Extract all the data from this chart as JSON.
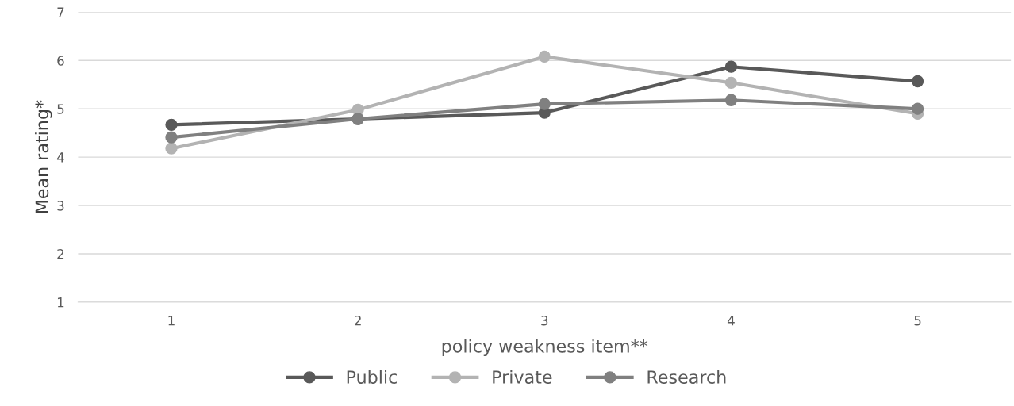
{
  "chart_data": {
    "type": "line",
    "xlabel": "policy weakness item**",
    "ylabel": "Mean rating*",
    "categories": [
      "1",
      "2",
      "3",
      "4",
      "5"
    ],
    "series": [
      {
        "name": "Public",
        "color": "#595959",
        "values": [
          4.67,
          4.79,
          4.92,
          5.87,
          5.57
        ]
      },
      {
        "name": "Private",
        "color": "#b3b3b3",
        "values": [
          4.18,
          4.98,
          6.08,
          5.54,
          4.9
        ]
      },
      {
        "name": "Research",
        "color": "#808080",
        "values": [
          4.41,
          4.79,
          5.1,
          5.18,
          5.0
        ]
      }
    ],
    "ylim": [
      1,
      7
    ],
    "yticks": [
      1,
      2,
      3,
      4,
      5,
      6,
      7
    ],
    "grid": "y",
    "legend": "bottom",
    "marker": "circle",
    "line_style": "solid"
  }
}
